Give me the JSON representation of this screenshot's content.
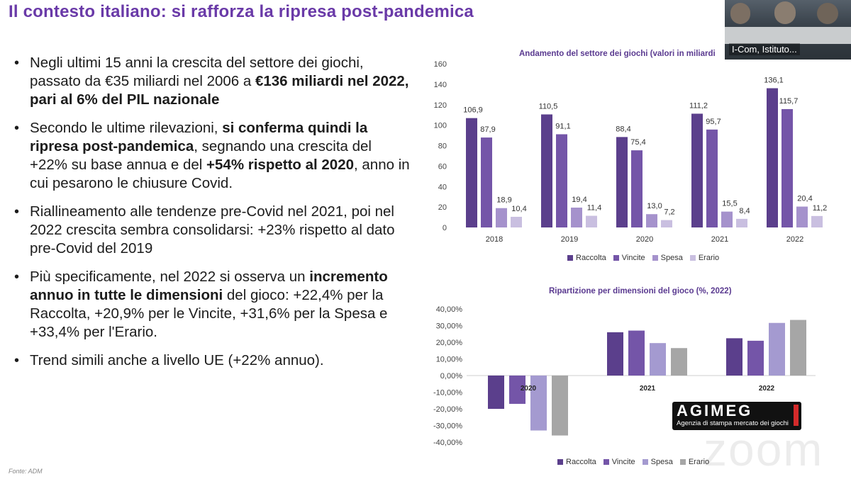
{
  "slide": {
    "title": "Il contesto italiano: si rafforza la ripresa post-pandemica",
    "source": "Fonte: ADM"
  },
  "bullets": [
    [
      {
        "t": "Negli ultimi 15 anni la crescita del settore dei giochi, passato da €35 miliardi nel 2006 a ",
        "b": false
      },
      {
        "t": "€136 miliardi nel 2022, pari al 6% del PIL nazionale",
        "b": true
      }
    ],
    [
      {
        "t": "Secondo le ultime rilevazioni, ",
        "b": false
      },
      {
        "t": "si conferma quindi la ripresa post-pandemica",
        "b": true
      },
      {
        "t": ", segnando una crescita del +22% su base annua e del ",
        "b": false
      },
      {
        "t": "+54% rispetto al 2020",
        "b": true
      },
      {
        "t": ", anno in cui pesarono le chiusure Covid.",
        "b": false
      }
    ],
    [
      {
        "t": "Riallineamento alle tendenze pre-Covid nel 2021, poi nel 2022 crescita sembra consolidarsi: +23% rispetto al dato pre-Covid del 2019",
        "b": false
      }
    ],
    [
      {
        "t": "Più specificamente, nel 2022 si osserva un ",
        "b": false
      },
      {
        "t": "incremento annuo in tutte le dimensioni",
        "b": true
      },
      {
        "t": " del gioco: +22,4% per la Raccolta, +20,9% per le Vincite, +31,6% per la Spesa e +33,4% per l'Erario.",
        "b": false
      }
    ],
    [
      {
        "t": "Trend simili anche a livello UE (+22% annuo).",
        "b": false
      }
    ]
  ],
  "video": {
    "participant_name": "I-Com, Istituto..."
  },
  "logo": {
    "name": "AGIMEG",
    "tagline": "Agenzia di stampa mercato dei giochi"
  },
  "watermark": "zoom",
  "colors": {
    "raccolta": "#5b3f8c",
    "vincite": "#7455a8",
    "spesa": "#a592cc",
    "erario": "#c9bfe0",
    "spesa_pct": "#a49ad0",
    "erario_pct": "#a6a6a6",
    "title": "#6a3aa8"
  },
  "chart_data": [
    {
      "type": "bar",
      "title": "Andamento del settore dei giochi (valori in miliardi",
      "categories": [
        "2018",
        "2019",
        "2020",
        "2021",
        "2022"
      ],
      "ylim": [
        0,
        160
      ],
      "yticks": [
        "0",
        "20",
        "40",
        "60",
        "80",
        "100",
        "120",
        "140",
        "160"
      ],
      "series": [
        {
          "name": "Raccolta",
          "values": [
            106.9,
            110.5,
            88.4,
            111.2,
            136.1
          ],
          "labels": [
            "106,9",
            "110,5",
            "88,4",
            "111,2",
            "136,1"
          ]
        },
        {
          "name": "Vincite",
          "values": [
            87.9,
            91.1,
            75.4,
            95.7,
            115.7
          ],
          "labels": [
            "87,9",
            "91,1",
            "75,4",
            "95,7",
            "115,7"
          ]
        },
        {
          "name": "Spesa",
          "values": [
            18.9,
            19.4,
            13.0,
            15.5,
            20.4
          ],
          "labels": [
            "18,9",
            "19,4",
            "13,0",
            "15,5",
            "20,4"
          ]
        },
        {
          "name": "Erario",
          "values": [
            10.4,
            11.4,
            7.2,
            8.4,
            11.2
          ],
          "labels": [
            "10,4",
            "11,4",
            "7,2",
            "8,4",
            "11,2"
          ]
        }
      ],
      "legend_position": "bottom"
    },
    {
      "type": "bar",
      "title": "Ripartizione per dimensioni del gioco (%, 2022)",
      "categories": [
        "2020",
        "2021",
        "2022"
      ],
      "ylim": [
        -40,
        40
      ],
      "yticks": [
        "-40,00%",
        "-30,00%",
        "-20,00%",
        "-10,00%",
        "0,00%",
        "10,00%",
        "20,00%",
        "30,00%",
        "40,00%"
      ],
      "series": [
        {
          "name": "Raccolta",
          "values": [
            -20.0,
            26.0,
            22.4
          ]
        },
        {
          "name": "Vincite",
          "values": [
            -17.0,
            27.0,
            20.9
          ]
        },
        {
          "name": "Spesa",
          "values": [
            -33.0,
            19.5,
            31.6
          ]
        },
        {
          "name": "Erario",
          "values": [
            -36.0,
            16.5,
            33.4
          ]
        }
      ],
      "legend_position": "bottom"
    }
  ]
}
